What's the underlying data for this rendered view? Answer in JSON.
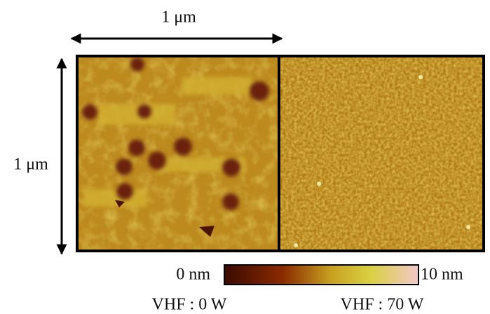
{
  "scale_x": {
    "label": "1 μm"
  },
  "scale_y": {
    "label": "1 μm"
  },
  "colorbar": {
    "min_label": "0 nm",
    "max_label": "10 nm"
  },
  "panels": [
    {
      "label": "VHF : 0 W"
    },
    {
      "label": "VHF : 70 W"
    }
  ]
}
